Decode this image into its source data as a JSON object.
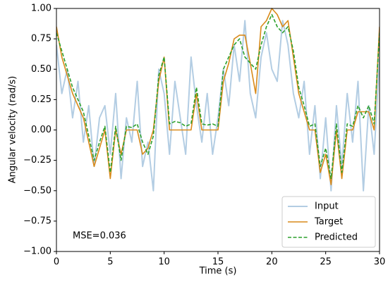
{
  "chart_data": {
    "type": "line",
    "xlabel": "Time (s)",
    "ylabel": "Angular velocity (rad/s)",
    "annotation": "MSE=0.036",
    "x": [
      0,
      0.5,
      1,
      1.5,
      2,
      2.5,
      3,
      3.5,
      4,
      4.5,
      5,
      5.5,
      6,
      6.5,
      7,
      7.5,
      8,
      8.5,
      9,
      9.5,
      10,
      10.5,
      11,
      11.5,
      12,
      12.5,
      13,
      13.5,
      14,
      14.5,
      15,
      15.5,
      16,
      16.5,
      17,
      17.5,
      18,
      18.5,
      19,
      19.5,
      20,
      20.5,
      21,
      21.5,
      22,
      22.5,
      23,
      23.5,
      24,
      24.5,
      25,
      25.5,
      26,
      26.5,
      27,
      27.5,
      28,
      28.5,
      29,
      29.5,
      30
    ],
    "series": [
      {
        "name": "Input",
        "color": "#b3cde3",
        "width": 2,
        "values": [
          0.7,
          0.3,
          0.5,
          0.1,
          0.4,
          -0.1,
          0.2,
          -0.3,
          0.1,
          0.2,
          -0.2,
          0.3,
          -0.4,
          0.1,
          -0.1,
          0.4,
          -0.3,
          -0.1,
          -0.5,
          0.5,
          0.3,
          -0.2,
          0.4,
          0.1,
          -0.2,
          0.6,
          0.2,
          -0.1,
          0.3,
          -0.2,
          0.1,
          0.5,
          0.2,
          0.7,
          0.4,
          0.9,
          0.3,
          0.1,
          0.6,
          0.8,
          0.5,
          0.4,
          0.9,
          0.7,
          0.3,
          0.1,
          0.4,
          -0.2,
          0.2,
          -0.4,
          0.1,
          -0.5,
          0.2,
          -0.3,
          0.3,
          -0.1,
          0.4,
          -0.5,
          0.2,
          -0.2,
          0.6
        ]
      },
      {
        "name": "Target",
        "color": "#d98a1a",
        "width": 1.6,
        "values": [
          0.85,
          0.6,
          0.45,
          0.3,
          0.2,
          0.1,
          -0.1,
          -0.3,
          -0.15,
          0,
          -0.4,
          0,
          -0.2,
          0,
          0,
          0,
          -0.2,
          -0.15,
          0,
          0.4,
          0.6,
          0,
          0,
          0,
          0,
          0,
          0.3,
          0,
          0,
          0,
          0,
          0.4,
          0.55,
          0.75,
          0.78,
          0.78,
          0.55,
          0.3,
          0.85,
          0.9,
          1,
          0.95,
          0.85,
          0.9,
          0.6,
          0.3,
          0.15,
          0,
          0,
          -0.35,
          -0.2,
          -0.45,
          0,
          -0.4,
          0,
          0,
          0.15,
          0.15,
          0.15,
          0,
          0.85
        ]
      },
      {
        "name": "Predicted",
        "color": "#2ca02c",
        "width": 1.6,
        "dashed": true,
        "values": [
          0.8,
          0.65,
          0.5,
          0.35,
          0.25,
          0.15,
          -0.05,
          -0.25,
          -0.1,
          0.03,
          -0.35,
          0.03,
          -0.25,
          0.03,
          0.02,
          0.05,
          -0.1,
          -0.2,
          -0.05,
          0.45,
          0.6,
          0.05,
          0.07,
          0.06,
          0.03,
          0.05,
          0.35,
          0.05,
          0.04,
          0.05,
          0.03,
          0.5,
          0.6,
          0.7,
          0.75,
          0.6,
          0.55,
          0.5,
          0.7,
          0.85,
          0.95,
          0.85,
          0.8,
          0.85,
          0.65,
          0.35,
          0.2,
          0.03,
          0.05,
          -0.3,
          -0.15,
          -0.4,
          0.05,
          -0.35,
          0.05,
          0.03,
          0.2,
          0.1,
          0.2,
          0.05,
          0.8
        ]
      }
    ],
    "xlim": [
      0,
      30
    ],
    "xticks": [
      0,
      5,
      10,
      15,
      20,
      25,
      30
    ],
    "ylim": [
      -1,
      1
    ],
    "yticks": [
      {
        "value": -1,
        "label": "−1.00"
      },
      {
        "value": -0.75,
        "label": "−0.75"
      },
      {
        "value": -0.5,
        "label": "−0.50"
      },
      {
        "value": -0.25,
        "label": "−0.25"
      },
      {
        "value": 0,
        "label": "0.00"
      },
      {
        "value": 0.25,
        "label": "0.25"
      },
      {
        "value": 0.5,
        "label": "0.50"
      },
      {
        "value": 0.75,
        "label": "0.75"
      },
      {
        "value": 1,
        "label": "1.00"
      }
    ],
    "legend": "lower right"
  }
}
